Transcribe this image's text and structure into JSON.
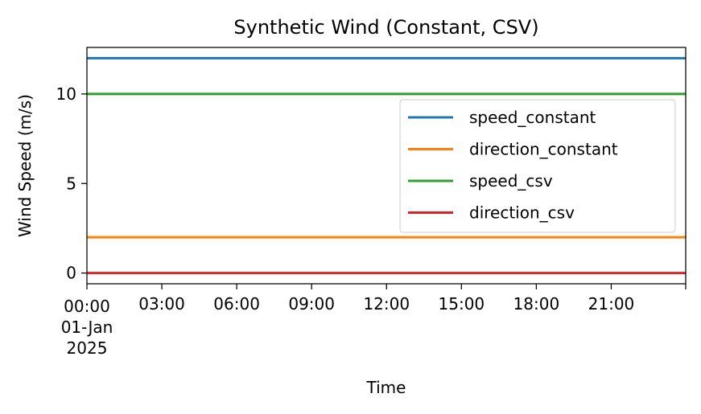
{
  "chart_data": {
    "type": "line",
    "title": "Synthetic Wind (Constant, CSV)",
    "xlabel": "Time",
    "ylabel": "Wind Speed (m/s)",
    "x_type": "datetime",
    "xlim": [
      "2025-01-01 00:00",
      "2025-01-01 23:59"
    ],
    "ylim": [
      -0.6,
      12.6
    ],
    "y_ticks": [
      0,
      5,
      10
    ],
    "x_ticks": [
      {
        "value": "2025-01-01 00:00",
        "label": [
          "00:00",
          "01-Jan",
          "2025"
        ]
      },
      {
        "value": "2025-01-01 03:00",
        "label": [
          "03:00"
        ]
      },
      {
        "value": "2025-01-01 06:00",
        "label": [
          "06:00"
        ]
      },
      {
        "value": "2025-01-01 09:00",
        "label": [
          "09:00"
        ]
      },
      {
        "value": "2025-01-01 12:00",
        "label": [
          "12:00"
        ]
      },
      {
        "value": "2025-01-01 15:00",
        "label": [
          "15:00"
        ]
      },
      {
        "value": "2025-01-01 18:00",
        "label": [
          "18:00"
        ]
      },
      {
        "value": "2025-01-01 21:00",
        "label": [
          "21:00"
        ]
      }
    ],
    "x_end": "2025-01-01 24:00",
    "grid": false,
    "legend_position": "right",
    "series": [
      {
        "name": "speed_constant",
        "color": "#1f77b4",
        "x": [
          "2025-01-01 00:00",
          "2025-01-01 23:59"
        ],
        "values": [
          12,
          12
        ]
      },
      {
        "name": "direction_constant",
        "color": "#ff7f0e",
        "x": [
          "2025-01-01 00:00",
          "2025-01-01 23:59"
        ],
        "values": [
          2,
          2
        ]
      },
      {
        "name": "speed_csv",
        "color": "#2ca02c",
        "x": [
          "2025-01-01 00:00",
          "2025-01-01 23:59"
        ],
        "values": [
          10,
          10
        ]
      },
      {
        "name": "direction_csv",
        "color": "#d62728",
        "x": [
          "2025-01-01 00:00",
          "2025-01-01 23:59"
        ],
        "values": [
          0,
          0
        ]
      }
    ]
  }
}
